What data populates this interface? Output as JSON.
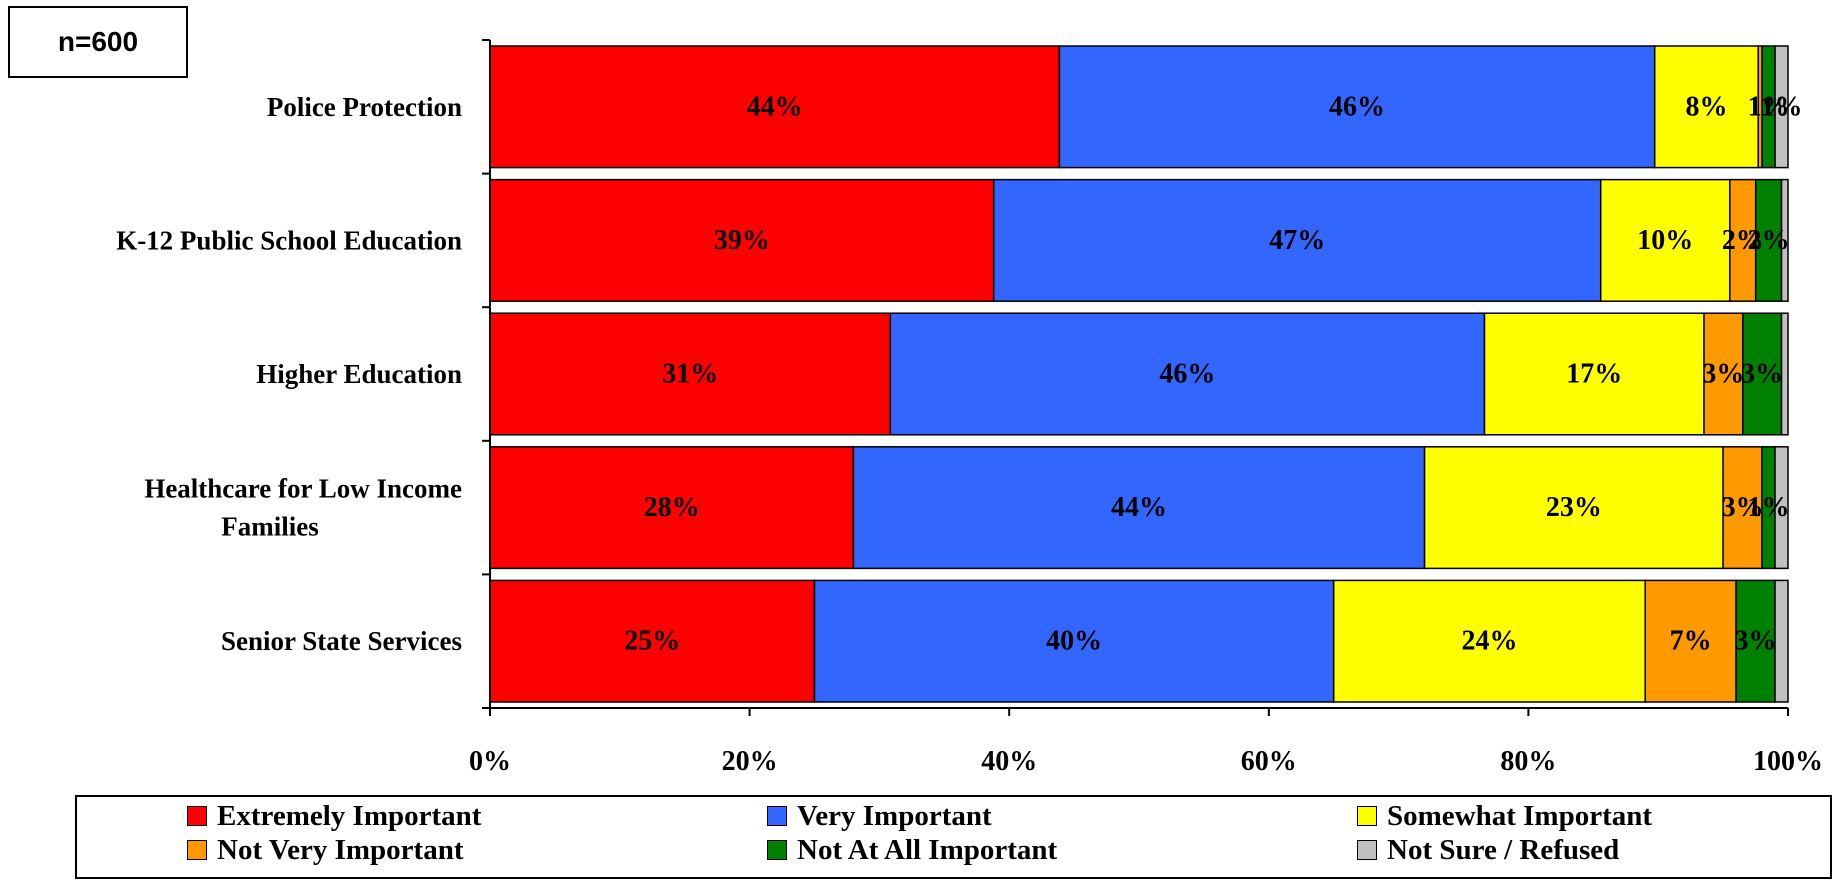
{
  "sample_label": "n=600",
  "chart_data": {
    "type": "bar",
    "orientation": "horizontal",
    "stacked": true,
    "stack_mode": "percent",
    "categories": [
      [
        "Police Protection"
      ],
      [
        "K-12 Public School Education"
      ],
      [
        "Higher Education"
      ],
      [
        "Healthcare for Low Income",
        "Families"
      ],
      [
        "Senior State Services"
      ]
    ],
    "series": [
      {
        "name": "Extremely Important",
        "color": "#ff0000",
        "values": [
          44,
          39,
          31,
          28,
          25
        ],
        "labels": [
          "44%",
          "39%",
          "31%",
          "28%",
          "25%"
        ]
      },
      {
        "name": "Very Important",
        "color": "#3366ff",
        "values": [
          46,
          47,
          46,
          44,
          40
        ],
        "labels": [
          "46%",
          "47%",
          "46%",
          "44%",
          "40%"
        ]
      },
      {
        "name": "Somewhat Important",
        "color": "#ffff00",
        "values": [
          8,
          10,
          17,
          23,
          24
        ],
        "labels": [
          "8%",
          "10%",
          "17%",
          "23%",
          "24%"
        ]
      },
      {
        "name": "Not Very Important",
        "color": "#ff9900",
        "values": [
          0.3,
          2,
          3,
          3,
          7
        ],
        "labels": [
          "",
          "2%",
          "3%",
          "3%",
          "7%"
        ]
      },
      {
        "name": "Not At All Important",
        "color": "#008000",
        "values": [
          1,
          2,
          3,
          1,
          3
        ],
        "labels": [
          "1%",
          "2%",
          "3%",
          "1%",
          "3%"
        ]
      },
      {
        "name": "Not Sure / Refused",
        "color": "#c0c0c0",
        "values": [
          1,
          0.5,
          0.5,
          1,
          1
        ],
        "labels": [
          "1%",
          "",
          "",
          "",
          ""
        ]
      }
    ],
    "x_ticks": [
      "0%",
      "20%",
      "40%",
      "60%",
      "80%",
      "100%"
    ],
    "xlim": [
      0,
      100
    ],
    "grid": false,
    "legend_position": "bottom"
  }
}
